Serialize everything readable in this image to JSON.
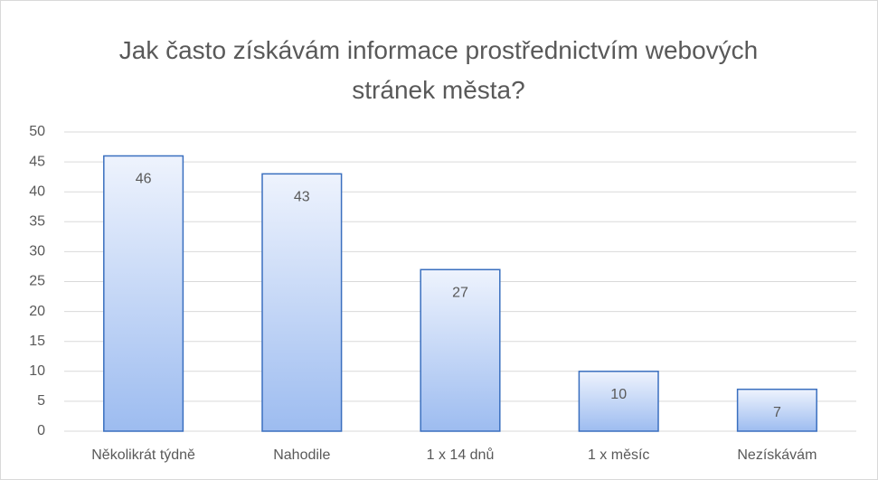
{
  "chart_data": {
    "type": "bar",
    "title": "Jak často získávám informace prostřednictvím webových stránek města?",
    "categories": [
      "Několikrát týdně",
      "Nahodile",
      "1 x 14 dnů",
      "1 x měsíc",
      "Nezískávám"
    ],
    "values": [
      46,
      43,
      27,
      10,
      7
    ],
    "color": "#3a6fbf",
    "ylim": [
      0,
      50
    ],
    "yticks": [
      0,
      5,
      10,
      15,
      20,
      25,
      30,
      35,
      40,
      45,
      50
    ],
    "grid": true
  }
}
